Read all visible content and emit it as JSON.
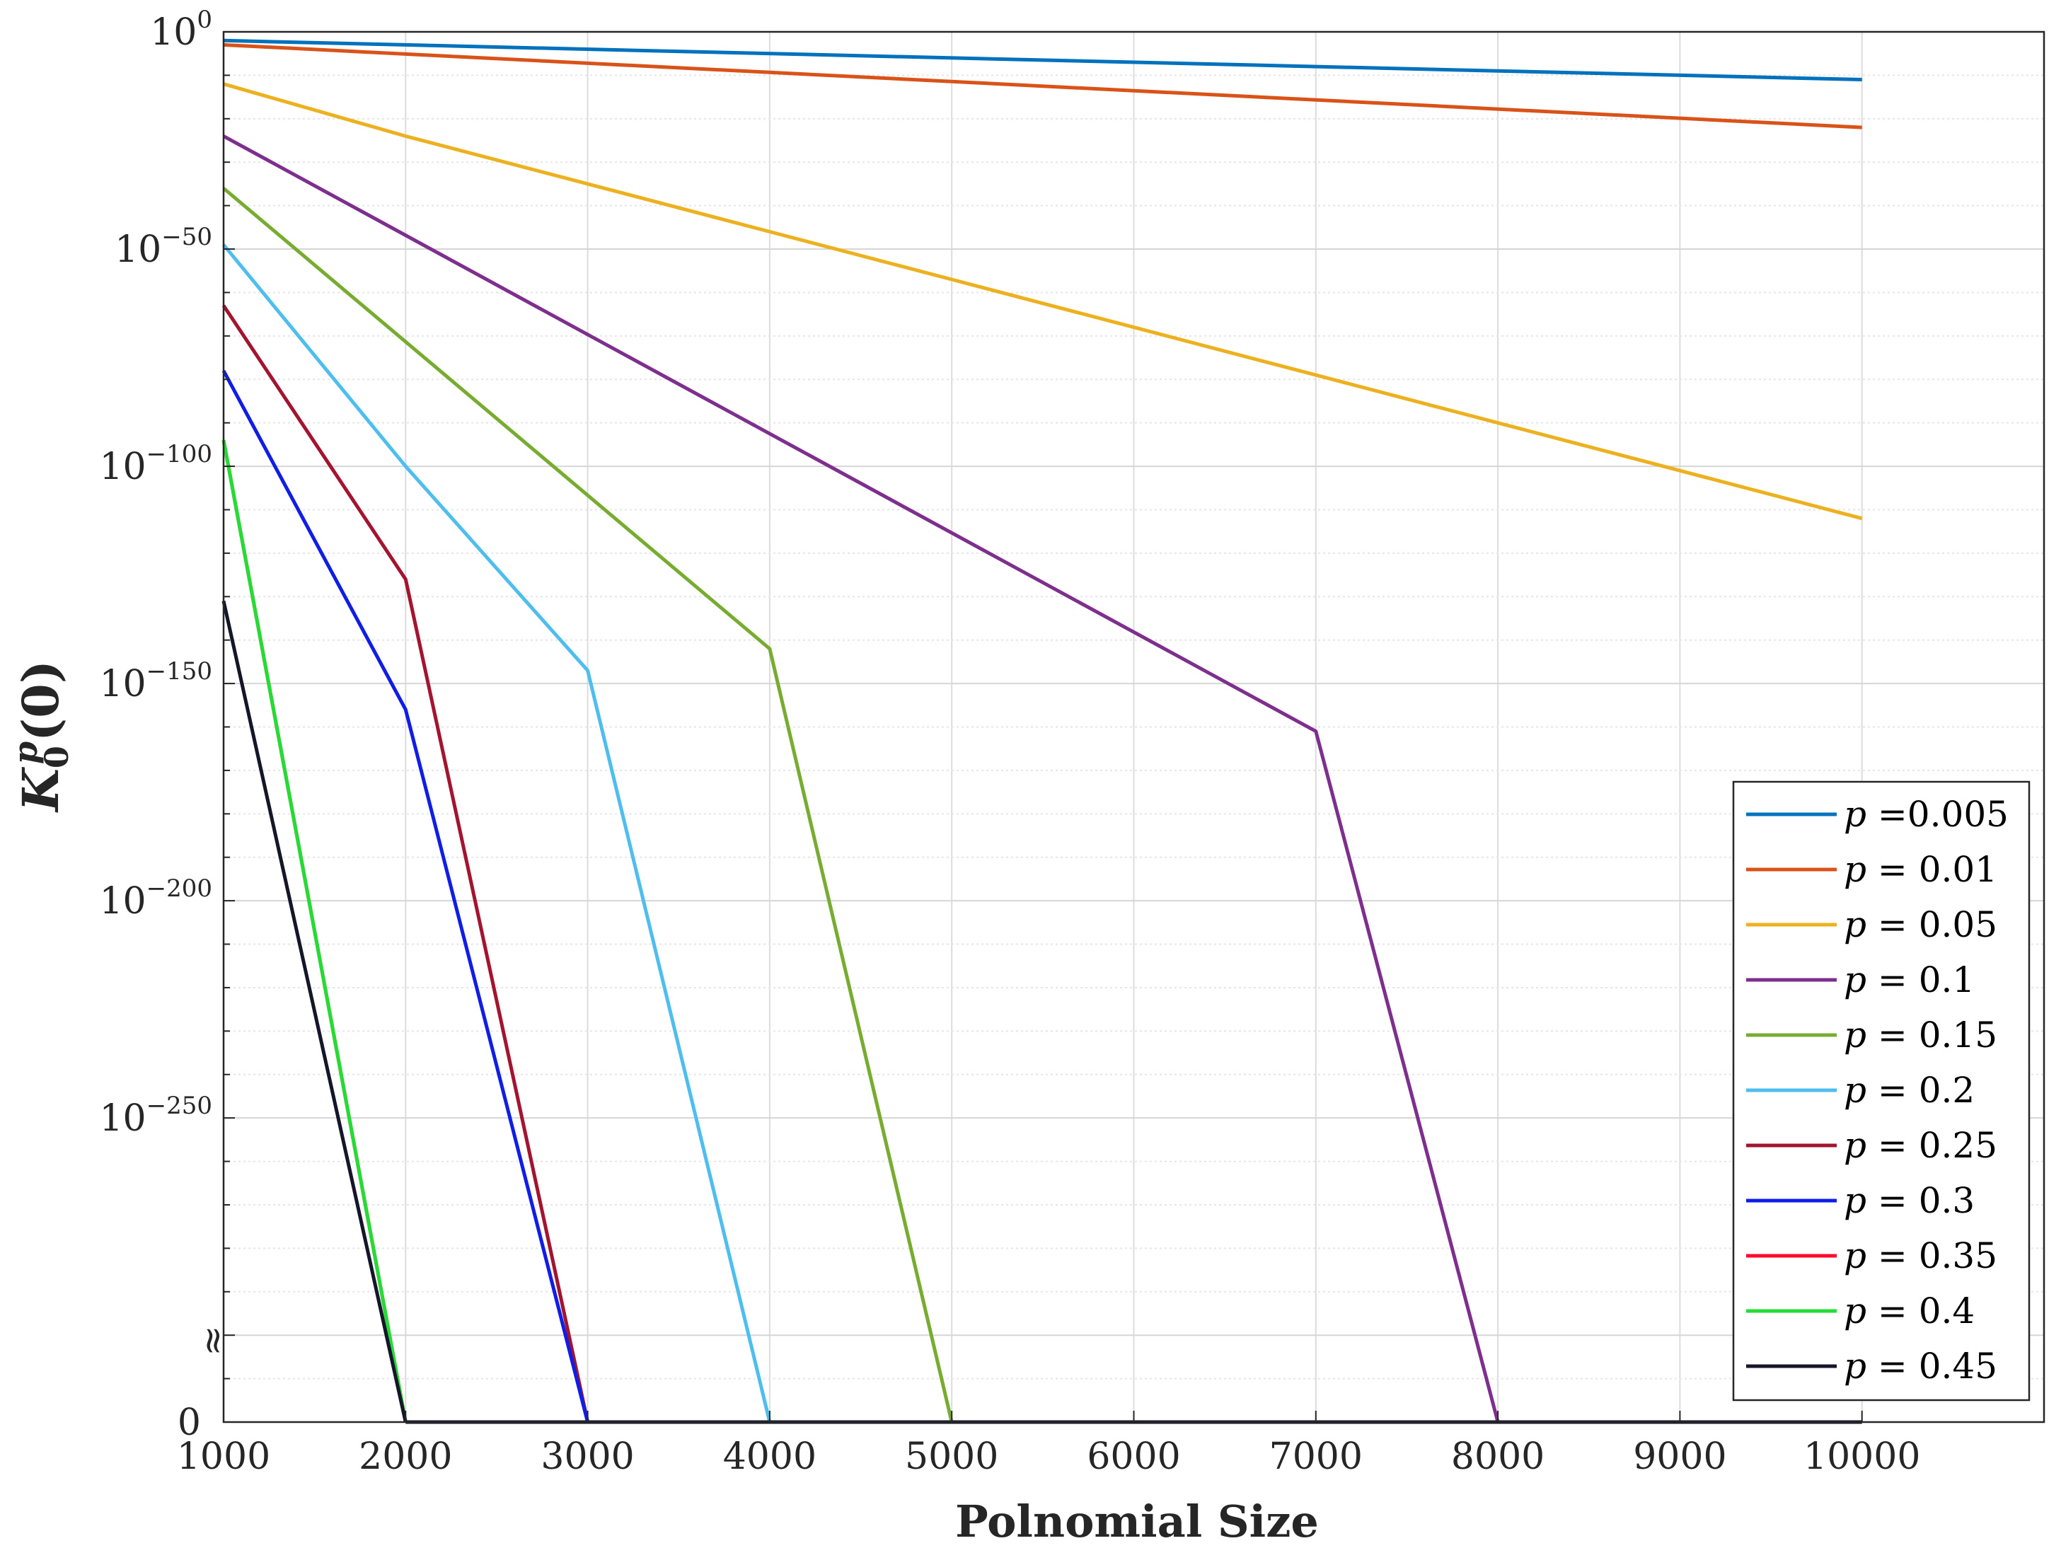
{
  "chart_data": {
    "type": "line",
    "xlabel": "Polnomial Size",
    "ylabel": {
      "base": "K",
      "sup": "p",
      "sub": "0",
      "arg": "(0)"
    },
    "x_ticks": [
      "1000",
      "2000",
      "3000",
      "4000",
      "5000",
      "6000",
      "7000",
      "8000",
      "9000",
      "10000"
    ],
    "y_ticks": [
      {
        "exp": 0,
        "base": "10",
        "sup": "0"
      },
      {
        "exp": -50,
        "base": "10",
        "sup": "−50"
      },
      {
        "exp": -100,
        "base": "10",
        "sup": "−100"
      },
      {
        "exp": -150,
        "base": "10",
        "sup": "−150"
      },
      {
        "exp": -200,
        "base": "10",
        "sup": "−200"
      },
      {
        "exp": -250,
        "base": "10",
        "sup": "−250"
      }
    ],
    "y_zero_label": "0",
    "axis_break_symbol": "≈",
    "xlim": [
      1000,
      11000
    ],
    "ylim_log10": [
      -320,
      0
    ],
    "y_scale": "log10 with broken axis down to 0",
    "grid": true,
    "legend_position": "lower-right",
    "series": [
      {
        "name": "0.005",
        "sep": " =",
        "color": "#0072BD",
        "x": [
          1000,
          10000
        ],
        "log10y": [
          -2,
          -11
        ]
      },
      {
        "name": "0.01",
        "sep": " = ",
        "color": "#D95319",
        "x": [
          1000,
          10000
        ],
        "log10y": [
          -3,
          -22
        ]
      },
      {
        "name": "0.05",
        "sep": " = ",
        "color": "#EDB120",
        "x": [
          1000,
          2000,
          3000,
          4000,
          5000,
          6000,
          7000,
          8000,
          9000,
          10000
        ],
        "log10y": [
          -12,
          -24,
          -35,
          -46,
          -57,
          -68,
          -79,
          -90,
          -101,
          -112
        ]
      },
      {
        "name": "0.1",
        "sep": " = ",
        "color": "#7E2F8E",
        "x": [
          1000,
          7000,
          8000
        ],
        "log10y": [
          -24,
          -161,
          "zero"
        ]
      },
      {
        "name": "0.15",
        "sep": " = ",
        "color": "#77AC30",
        "x": [
          1000,
          4000,
          5000
        ],
        "log10y": [
          -36,
          -142,
          "zero"
        ]
      },
      {
        "name": "0.2",
        "sep": " = ",
        "color": "#4DBEEE",
        "x": [
          1000,
          2000,
          3000,
          4000
        ],
        "log10y": [
          -49,
          -100,
          -147,
          "zero"
        ]
      },
      {
        "name": "0.25",
        "sep": " = ",
        "color": "#A2142F",
        "x": [
          1000,
          2000,
          3000
        ],
        "log10y": [
          -63,
          -126,
          "zero"
        ]
      },
      {
        "name": "0.3",
        "sep": " = ",
        "color": "#0F1DE6",
        "x": [
          1000,
          2000,
          3000
        ],
        "log10y": [
          -78,
          -156,
          "zero"
        ]
      },
      {
        "name": "0.35",
        "sep": " = ",
        "color": "#FF0A2E",
        "x": [
          1000,
          2000
        ],
        "log10y": [
          -94,
          "zero"
        ]
      },
      {
        "name": "0.4",
        "sep": " = ",
        "color": "#22DD33",
        "x": [
          1000,
          2000
        ],
        "log10y": [
          -94,
          "zero"
        ]
      },
      {
        "name": "0.45",
        "sep": " = ",
        "color": "#15162A",
        "x": [
          1000,
          2000
        ],
        "log10y": [
          -131,
          "zero"
        ]
      }
    ]
  }
}
